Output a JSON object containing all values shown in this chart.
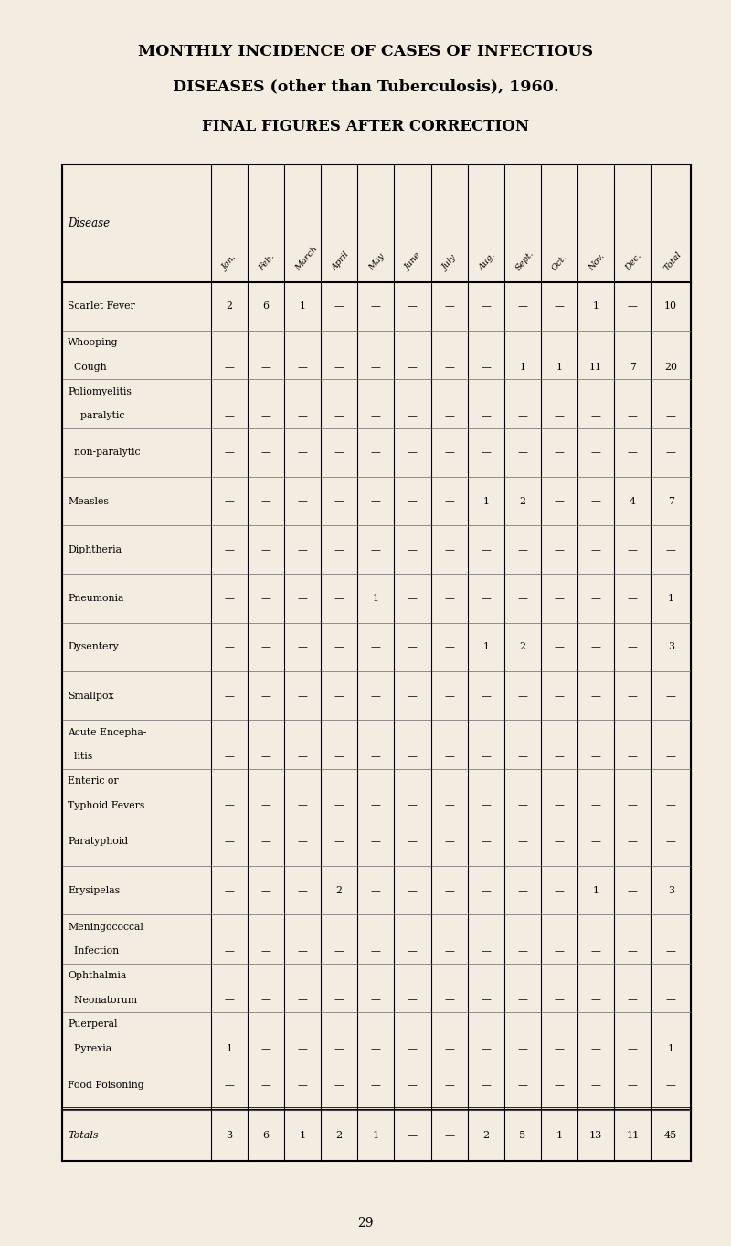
{
  "title1": "MONTHLY INCIDENCE OF CASES OF INFECTIOUS",
  "title2": "DISEASES (other than Tuberculosis), 1960.",
  "title3": "FINAL FIGURES AFTER CORRECTION",
  "bg_color": "#f2ede0",
  "columns": [
    "Disease",
    "Jan.",
    "Feb.",
    "March",
    "April",
    "May",
    "June",
    "July",
    "Aug.",
    "Sept.",
    "Oct.",
    "Nov.",
    "Dec.",
    "Total"
  ],
  "rows": [
    {
      "lines": [
        "Scarlet Fever"
      ],
      "data_line": 0,
      "values": [
        "2",
        "6",
        "1",
        "—",
        "—",
        "—",
        "—",
        "—",
        "—",
        "—",
        "1",
        "—",
        "10"
      ]
    },
    {
      "lines": [
        "Whooping",
        "  Cough"
      ],
      "data_line": 1,
      "values": [
        "—",
        "—",
        "—",
        "—",
        "—",
        "—",
        "—",
        "—",
        "1",
        "1",
        "11",
        "7",
        "20"
      ]
    },
    {
      "lines": [
        "Poliomyelitis",
        "    paralytic"
      ],
      "data_line": 1,
      "values": [
        "—",
        "—",
        "—",
        "—",
        "—",
        "—",
        "—",
        "—",
        "—",
        "—",
        "—",
        "—",
        "—"
      ]
    },
    {
      "lines": [
        "  non-paralytic"
      ],
      "data_line": 0,
      "values": [
        "—",
        "—",
        "—",
        "—",
        "—",
        "—",
        "—",
        "—",
        "—",
        "—",
        "—",
        "—",
        "—"
      ]
    },
    {
      "lines": [
        "Measles"
      ],
      "data_line": 0,
      "values": [
        "—",
        "—",
        "—",
        "—",
        "—",
        "—",
        "—",
        "1",
        "2",
        "—",
        "—",
        "4",
        "7"
      ]
    },
    {
      "lines": [
        "Diphtheria"
      ],
      "data_line": 0,
      "values": [
        "—",
        "—",
        "—",
        "—",
        "—",
        "—",
        "—",
        "—",
        "—",
        "—",
        "—",
        "—",
        "—"
      ]
    },
    {
      "lines": [
        "Pneumonia"
      ],
      "data_line": 0,
      "values": [
        "—",
        "—",
        "—",
        "—",
        "1",
        "—",
        "—",
        "—",
        "—",
        "—",
        "—",
        "—",
        "1"
      ]
    },
    {
      "lines": [
        "Dysentery"
      ],
      "data_line": 0,
      "values": [
        "—",
        "—",
        "—",
        "—",
        "—",
        "—",
        "—",
        "1",
        "2",
        "—",
        "—",
        "—",
        "3"
      ]
    },
    {
      "lines": [
        "Smallpox"
      ],
      "data_line": 0,
      "values": [
        "—",
        "—",
        "—",
        "—",
        "—",
        "—",
        "—",
        "—",
        "—",
        "—",
        "—",
        "—",
        "—"
      ]
    },
    {
      "lines": [
        "Acute Encepha-",
        "  litis"
      ],
      "data_line": 1,
      "values": [
        "—",
        "—",
        "—",
        "—",
        "—",
        "—",
        "—",
        "—",
        "—",
        "—",
        "—",
        "—",
        "—"
      ]
    },
    {
      "lines": [
        "Enteric or",
        "Typhoid Fevers"
      ],
      "data_line": 1,
      "values": [
        "—",
        "—",
        "—",
        "—",
        "—",
        "—",
        "—",
        "—",
        "—",
        "—",
        "—",
        "—",
        "—"
      ]
    },
    {
      "lines": [
        "Paratyphoid"
      ],
      "data_line": 0,
      "values": [
        "—",
        "—",
        "—",
        "—",
        "—",
        "—",
        "—",
        "—",
        "—",
        "—",
        "—",
        "—",
        "—"
      ]
    },
    {
      "lines": [
        "Erysipelas"
      ],
      "data_line": 0,
      "values": [
        "—",
        "—",
        "—",
        "2",
        "—",
        "—",
        "—",
        "—",
        "—",
        "—",
        "1",
        "—",
        "3"
      ]
    },
    {
      "lines": [
        "Meningococcal",
        "  Infection"
      ],
      "data_line": 1,
      "values": [
        "—",
        "—",
        "—",
        "—",
        "—",
        "—",
        "—",
        "—",
        "—",
        "—",
        "—",
        "—",
        "—"
      ]
    },
    {
      "lines": [
        "Ophthalmia",
        "  Neonatorum"
      ],
      "data_line": 1,
      "values": [
        "—",
        "—",
        "—",
        "—",
        "—",
        "—",
        "—",
        "—",
        "—",
        "—",
        "—",
        "—",
        "—"
      ]
    },
    {
      "lines": [
        "Puerperal",
        "  Pyrexia"
      ],
      "data_line": 1,
      "values": [
        "1",
        "—",
        "—",
        "—",
        "—",
        "—",
        "—",
        "—",
        "—",
        "—",
        "—",
        "—",
        "1"
      ]
    },
    {
      "lines": [
        "Food Poisoning"
      ],
      "data_line": 0,
      "values": [
        "—",
        "—",
        "—",
        "—",
        "—",
        "—",
        "—",
        "—",
        "—",
        "—",
        "—",
        "—",
        "—"
      ]
    }
  ],
  "totals": [
    "Totals",
    "3",
    "6",
    "1",
    "2",
    "1",
    "—",
    "—",
    "2",
    "5",
    "1",
    "13",
    "11",
    "45"
  ],
  "page_number": "29"
}
